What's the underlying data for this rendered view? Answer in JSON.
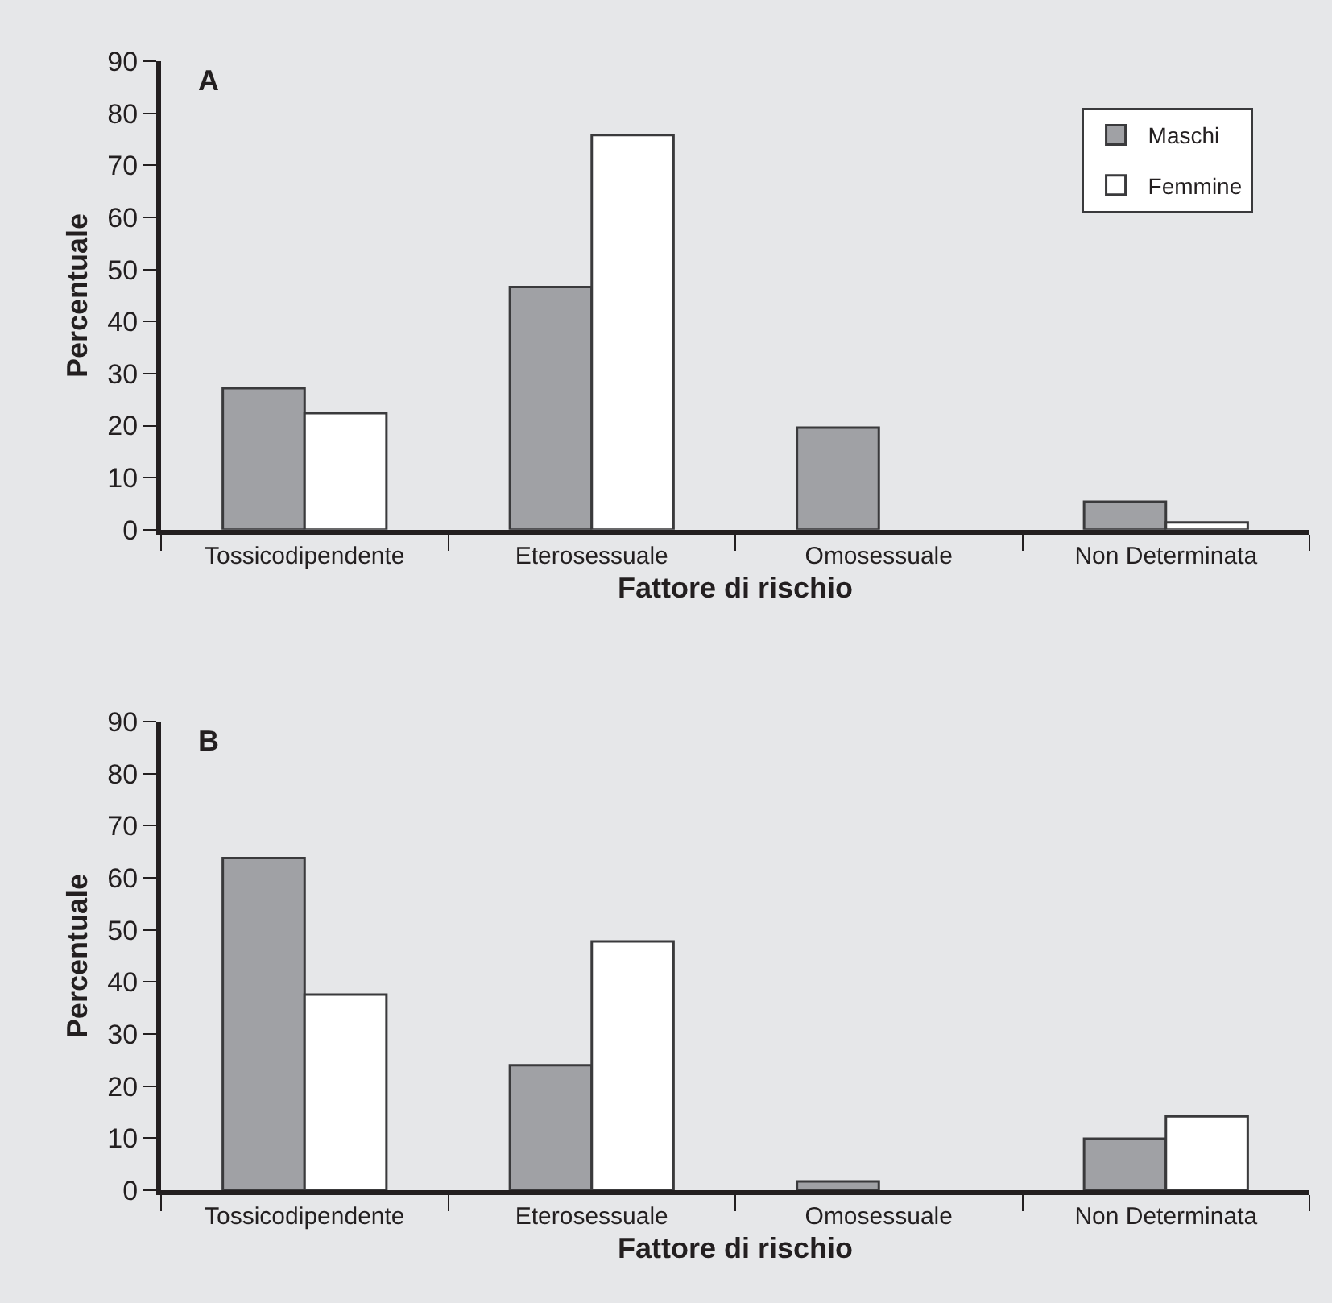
{
  "chart_data": [
    {
      "type": "bar",
      "title": "A",
      "xlabel": "Fattore di rischio",
      "ylabel": "Percentuale",
      "categories": [
        "Tossicodipendente",
        "Eterosessuale",
        "Omosessuale",
        "Non Determinata"
      ],
      "series": [
        {
          "name": "Maschi",
          "color": "#a0a1a5",
          "values": [
            27.2,
            46.6,
            19.6,
            5.4
          ]
        },
        {
          "name": "Femmine",
          "color": "#ffffff",
          "values": [
            22.4,
            75.8,
            null,
            1.4
          ]
        }
      ],
      "ylim": [
        0,
        90
      ],
      "yticks": [
        0,
        10,
        20,
        30,
        40,
        50,
        60,
        70,
        80,
        90
      ],
      "grid": false,
      "legend": "top right"
    },
    {
      "type": "bar",
      "title": "B",
      "xlabel": "Fattore di rischio",
      "ylabel": "Percentuale",
      "categories": [
        "Tossicodipendente",
        "Eterosessuale",
        "Omosessuale",
        "Non Determinata"
      ],
      "series": [
        {
          "color": "#a0a1a5",
          "values": [
            63.8,
            24.0,
            1.7,
            9.9
          ]
        },
        {
          "color": "#ffffff",
          "values": [
            37.6,
            47.8,
            null,
            14.2
          ]
        }
      ],
      "ylim": [
        0,
        90
      ],
      "yticks": [
        0,
        10,
        20,
        30,
        40,
        50,
        60,
        70,
        80,
        90
      ],
      "grid": false,
      "legend": false
    }
  ]
}
